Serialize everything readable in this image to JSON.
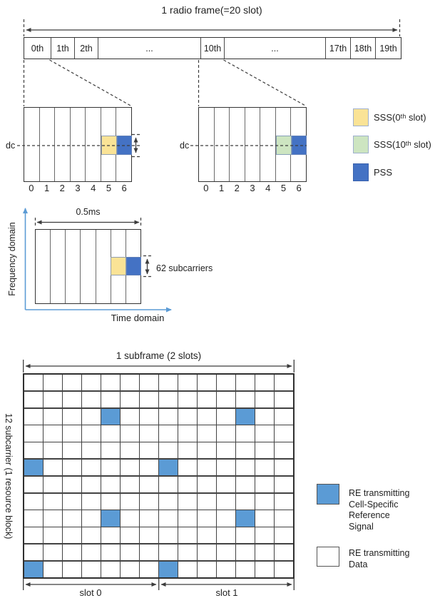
{
  "colors": {
    "sss0": "#FAE396",
    "sss10": "#CDE5C1",
    "pss": "#4472C4",
    "crs": "#5B9BD5",
    "axis": "#5B9BD5",
    "line": "#3c3c3c"
  },
  "radio_frame": {
    "title": "1 radio frame(=20 slot)",
    "slots": [
      "0th",
      "1th",
      "2th",
      "...",
      "10th",
      "...",
      "17th",
      "18th",
      "19th"
    ]
  },
  "slot_grids": {
    "dc_label": "dc",
    "symbol_labels": [
      "0",
      "1",
      "2",
      "3",
      "4",
      "5",
      "6"
    ]
  },
  "legend_sync": {
    "items": [
      {
        "label": "SSS(0ᵗʰ slot)"
      },
      {
        "label": "SSS(10ᵗʰ slot)"
      },
      {
        "label": "PSS"
      }
    ]
  },
  "freq_time": {
    "y_axis_label": "Frequency domain",
    "x_axis_label": "Time domain",
    "duration_label": "0.5ms",
    "subcarriers_label": "62 subcarriers"
  },
  "resource_grid": {
    "title": "1 subframe (2 slots)",
    "y_label": "12 subcarrier (1 resource block)",
    "cols": 14,
    "rows": 12,
    "crs_cells": [
      [
        4,
        2
      ],
      [
        11,
        2
      ],
      [
        0,
        5
      ],
      [
        7,
        5
      ],
      [
        4,
        8
      ],
      [
        11,
        8
      ],
      [
        0,
        11
      ],
      [
        7,
        11
      ]
    ],
    "slot0_label": "slot 0",
    "slot1_label": "slot 1"
  },
  "legend_crs": {
    "items": [
      {
        "lines": [
          "RE transmitting",
          "Cell-Specific",
          "Reference",
          "Signal"
        ]
      },
      {
        "lines": [
          "RE transmitting",
          "Data"
        ]
      }
    ]
  }
}
